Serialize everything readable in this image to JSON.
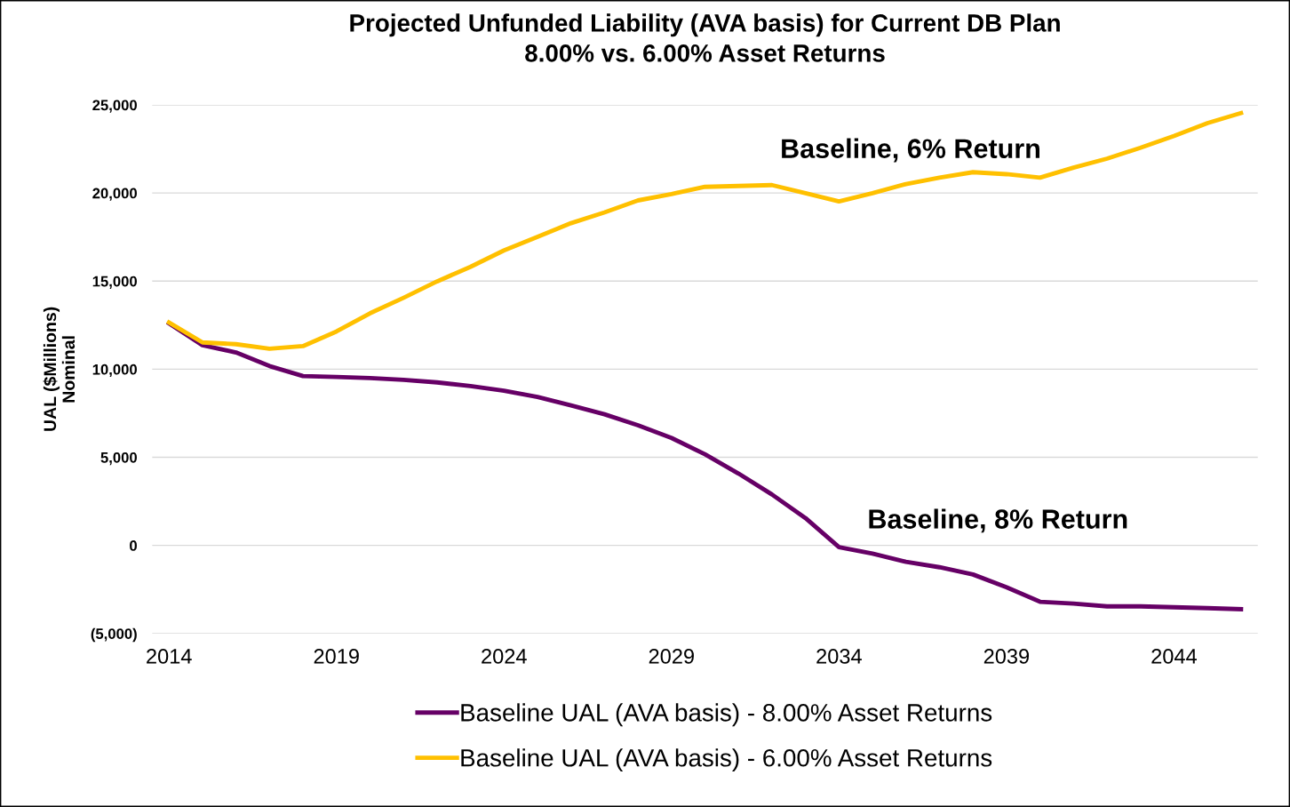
{
  "chart_data": {
    "type": "line",
    "title": "Projected Unfunded Liability (AVA basis) for Current DB Plan\n8.00% vs. 6.00% Asset Returns",
    "ylabel": "UAL ($Millions)\nNominal",
    "x": [
      2014,
      2015,
      2016,
      2017,
      2018,
      2019,
      2020,
      2021,
      2022,
      2023,
      2024,
      2025,
      2026,
      2027,
      2028,
      2029,
      2030,
      2031,
      2032,
      2033,
      2034,
      2035,
      2036,
      2037,
      2038,
      2039,
      2040,
      2041,
      2042,
      2043,
      2044,
      2045,
      2046
    ],
    "series": [
      {
        "name": "Baseline UAL (AVA basis) - 8.00% Asset Returns",
        "color": "#660066",
        "values": [
          12600,
          11360,
          10950,
          10180,
          9610,
          9560,
          9500,
          9400,
          9250,
          9040,
          8780,
          8420,
          7950,
          7440,
          6820,
          6100,
          5170,
          4080,
          2890,
          1550,
          -100,
          -460,
          -930,
          -1240,
          -1650,
          -2380,
          -3200,
          -3300,
          -3460,
          -3460,
          -3510,
          -3560,
          -3620
        ]
      },
      {
        "name": "Baseline UAL (AVA basis) - 6.00% Asset Returns",
        "color": "#ffc000",
        "values": [
          12650,
          11520,
          11420,
          11160,
          11310,
          12140,
          13170,
          14050,
          14980,
          15810,
          16740,
          17510,
          18290,
          18900,
          19580,
          19940,
          20350,
          20400,
          20450,
          19990,
          19520,
          19990,
          20510,
          20870,
          21180,
          21070,
          20870,
          21440,
          21950,
          22570,
          23240,
          23970,
          24540
        ]
      }
    ],
    "xlim": [
      2013.5,
      2046.5
    ],
    "xticks": [
      2014,
      2019,
      2024,
      2029,
      2034,
      2039,
      2044
    ],
    "ylim": [
      -5000,
      25000
    ],
    "yticks": [
      {
        "value": -5000,
        "label": "(5,000)"
      },
      {
        "value": 0,
        "label": "0"
      },
      {
        "value": 5000,
        "label": "5,000"
      },
      {
        "value": 10000,
        "label": "10,000"
      },
      {
        "value": 15000,
        "label": "15,000"
      },
      {
        "value": 20000,
        "label": "20,000"
      },
      {
        "value": 25000,
        "label": "25,000"
      }
    ],
    "grid": "y",
    "legend": "bottom",
    "marker": "none",
    "line_style": "solid",
    "annotations": [
      "Baseline, 6% Return",
      "Baseline, 8% Return"
    ]
  }
}
